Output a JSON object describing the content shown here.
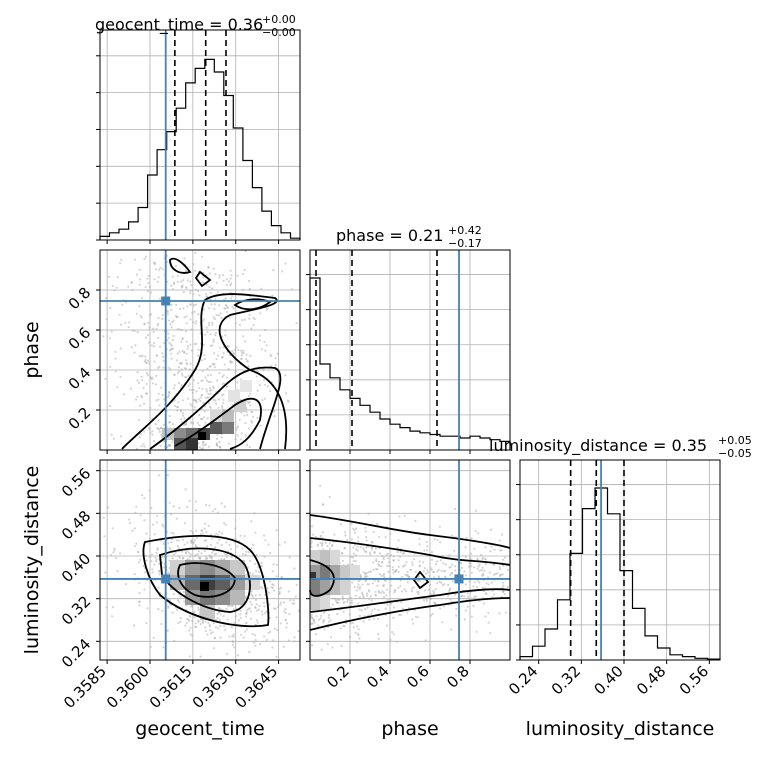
{
  "chart_data": {
    "type": "corner",
    "parameters": [
      "geocent_time",
      "phase",
      "luminosity_distance"
    ],
    "axes": [
      {
        "name": "geocent_time",
        "range": [
          0.35825,
          0.36525
        ],
        "ticks": [
          0.3585,
          0.36,
          0.3615,
          0.363,
          0.3645
        ],
        "tick_labels": [
          "0.3585",
          "0.3600",
          "0.3615",
          "0.3630",
          "0.3645"
        ]
      },
      {
        "name": "phase",
        "range": [
          0.0,
          1.0
        ],
        "ticks": [
          0.2,
          0.4,
          0.6,
          0.8
        ],
        "tick_labels": [
          "0.2",
          "0.4",
          "0.6",
          "0.8"
        ]
      },
      {
        "name": "luminosity_distance",
        "range": [
          0.205,
          0.58
        ],
        "ticks": [
          0.24,
          0.32,
          0.4,
          0.48,
          0.56
        ],
        "tick_labels": [
          "0.24",
          "0.32",
          "0.40",
          "0.48",
          "0.56"
        ]
      }
    ],
    "titles": [
      {
        "param": "geocent_time",
        "median": "0.36",
        "plus": "+0.00",
        "minus": "−0.00"
      },
      {
        "param": "phase",
        "median": "0.21",
        "plus": "+0.42",
        "minus": "−0.17"
      },
      {
        "param": "luminosity_distance",
        "median": "0.35",
        "plus": "+0.05",
        "minus": "−0.05"
      }
    ],
    "truths": {
      "geocent_time": 0.36055,
      "phase": 0.745,
      "luminosity_distance": 0.357
    },
    "quantiles": {
      "geocent_time": [
        0.36087,
        0.36195,
        0.36266
      ],
      "phase": [
        0.03,
        0.21,
        0.635
      ],
      "luminosity_distance": [
        0.3,
        0.348,
        0.4
      ]
    },
    "histograms": {
      "geocent_time": [
        0.02,
        0.04,
        0.06,
        0.1,
        0.18,
        0.36,
        0.5,
        0.6,
        0.73,
        0.87,
        0.95,
        1.0,
        0.93,
        0.8,
        0.62,
        0.44,
        0.29,
        0.16,
        0.08,
        0.04,
        0.01
      ],
      "phase": [
        1.0,
        0.5,
        0.42,
        0.35,
        0.3,
        0.26,
        0.22,
        0.18,
        0.15,
        0.13,
        0.11,
        0.1,
        0.09,
        0.08,
        0.08,
        0.07,
        0.08,
        0.07,
        0.06,
        0.05
      ],
      "luminosity_distance": [
        0.02,
        0.08,
        0.18,
        0.35,
        0.62,
        0.88,
        1.0,
        0.85,
        0.52,
        0.3,
        0.14,
        0.07,
        0.03,
        0.02,
        0.01,
        0.005
      ]
    },
    "grid": true,
    "colors": {
      "truth": "#4682b4",
      "hist": "#000000",
      "quantile": "#000000",
      "scatter": "#b0b0b0",
      "grid": "#b0b0b0"
    }
  }
}
